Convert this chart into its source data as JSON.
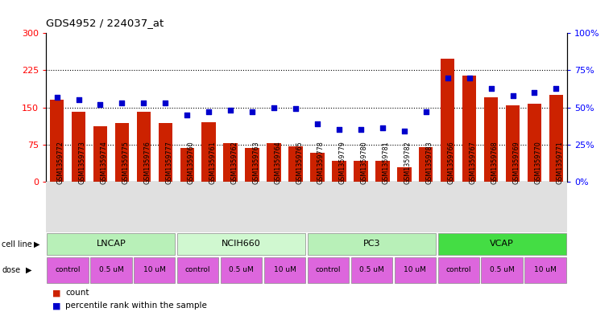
{
  "title": "GDS4952 / 224037_at",
  "samples": [
    "GSM1359772",
    "GSM1359773",
    "GSM1359774",
    "GSM1359775",
    "GSM1359776",
    "GSM1359777",
    "GSM1359760",
    "GSM1359761",
    "GSM1359762",
    "GSM1359763",
    "GSM1359764",
    "GSM1359765",
    "GSM1359778",
    "GSM1359779",
    "GSM1359780",
    "GSM1359781",
    "GSM1359782",
    "GSM1359783",
    "GSM1359766",
    "GSM1359767",
    "GSM1359768",
    "GSM1359769",
    "GSM1359770",
    "GSM1359771"
  ],
  "counts": [
    165,
    142,
    112,
    118,
    142,
    118,
    68,
    120,
    78,
    68,
    78,
    72,
    58,
    42,
    42,
    42,
    30,
    70,
    248,
    215,
    170,
    155,
    158,
    175
  ],
  "percentiles": [
    57,
    55,
    52,
    53,
    53,
    53,
    45,
    47,
    48,
    47,
    50,
    49,
    39,
    35,
    35,
    36,
    34,
    47,
    70,
    70,
    63,
    58,
    60,
    63
  ],
  "cell_line_groups": [
    {
      "name": "LNCAP",
      "start": 0,
      "end": 6,
      "color": "#b8f0b8"
    },
    {
      "name": "NCIH660",
      "start": 6,
      "end": 12,
      "color": "#d0f8d0"
    },
    {
      "name": "PC3",
      "start": 12,
      "end": 18,
      "color": "#b8f0b8"
    },
    {
      "name": "VCAP",
      "start": 18,
      "end": 24,
      "color": "#44dd44"
    }
  ],
  "dose_groups": [
    {
      "label": "control",
      "start": 0,
      "end": 2,
      "color": "#ee88ee"
    },
    {
      "label": "0.5 uM",
      "start": 2,
      "end": 4,
      "color": "#ee88ee"
    },
    {
      "label": "10 uM",
      "start": 4,
      "end": 6,
      "color": "#ee88ee"
    },
    {
      "label": "control",
      "start": 6,
      "end": 8,
      "color": "#ee88ee"
    },
    {
      "label": "0.5 uM",
      "start": 8,
      "end": 10,
      "color": "#ee88ee"
    },
    {
      "label": "10 uM",
      "start": 10,
      "end": 12,
      "color": "#ee88ee"
    },
    {
      "label": "control",
      "start": 12,
      "end": 14,
      "color": "#ee88ee"
    },
    {
      "label": "0.5 uM",
      "start": 14,
      "end": 16,
      "color": "#ee88ee"
    },
    {
      "label": "10 uM",
      "start": 16,
      "end": 18,
      "color": "#ee88ee"
    },
    {
      "label": "control",
      "start": 18,
      "end": 20,
      "color": "#ee88ee"
    },
    {
      "label": "0.5 uM",
      "start": 20,
      "end": 22,
      "color": "#ee88ee"
    },
    {
      "label": "10 uM",
      "start": 22,
      "end": 24,
      "color": "#ee88ee"
    }
  ],
  "dose_labels_per_group": [
    "control",
    "0.5 uM",
    "10 uM"
  ],
  "bar_color": "#cc2200",
  "dot_color": "#0000cc",
  "plot_bg": "#ffffff",
  "fig_bg": "#ffffff",
  "ylim_left": [
    0,
    300
  ],
  "ylim_right": [
    0,
    100
  ],
  "yticks_left": [
    0,
    75,
    150,
    225,
    300
  ],
  "ytick_labels_left": [
    "0",
    "75",
    "150",
    "225",
    "300"
  ],
  "yticks_right": [
    0,
    25,
    50,
    75,
    100
  ],
  "ytick_labels_right": [
    "0%",
    "25%",
    "50%",
    "75%",
    "100%"
  ],
  "hlines": [
    75,
    150,
    225
  ],
  "legend_count": "count",
  "legend_pct": "percentile rank within the sample"
}
